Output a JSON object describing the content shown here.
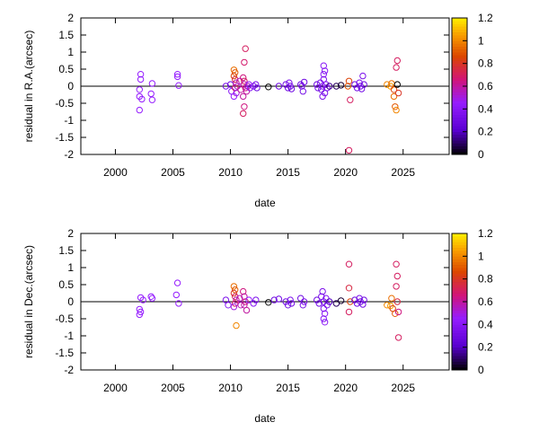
{
  "chart_data": [
    {
      "type": "scatter",
      "xlabel": "date",
      "ylabel": "residual in R.A.(arcsec)",
      "xlim": [
        1997,
        2029
      ],
      "ylim": [
        -2,
        2
      ],
      "xticks": [
        2000,
        2005,
        2010,
        2015,
        2020,
        2025
      ],
      "yticks": [
        -2,
        -1.5,
        -1,
        -0.5,
        0,
        0.5,
        1,
        1.5,
        2
      ],
      "ytick_labels": [
        "-2",
        "-1.5",
        "-1",
        "-0.5",
        "0",
        "0.5",
        "1",
        "1.5",
        "2"
      ],
      "colorbar": {
        "range": [
          0,
          1.2
        ],
        "ticks": [
          0,
          0.2,
          0.4,
          0.6,
          0.8,
          1,
          1.2
        ]
      },
      "reference_line_y": 0,
      "grid": false,
      "points": [
        {
          "x": 2002.2,
          "y": 0.35,
          "c": 0.45
        },
        {
          "x": 2002.2,
          "y": 0.2,
          "c": 0.45
        },
        {
          "x": 2002.1,
          "y": -0.1,
          "c": 0.45
        },
        {
          "x": 2002.1,
          "y": -0.3,
          "c": 0.45
        },
        {
          "x": 2002.3,
          "y": -0.38,
          "c": 0.45
        },
        {
          "x": 2002.1,
          "y": -0.7,
          "c": 0.45
        },
        {
          "x": 2003.2,
          "y": 0.08,
          "c": 0.45
        },
        {
          "x": 2003.1,
          "y": -0.22,
          "c": 0.45
        },
        {
          "x": 2003.2,
          "y": -0.4,
          "c": 0.45
        },
        {
          "x": 2005.4,
          "y": 0.35,
          "c": 0.45
        },
        {
          "x": 2005.4,
          "y": 0.28,
          "c": 0.45
        },
        {
          "x": 2005.5,
          "y": 0.02,
          "c": 0.45
        },
        {
          "x": 2009.6,
          "y": 0.0,
          "c": 0.35
        },
        {
          "x": 2010.0,
          "y": 0.05,
          "c": 0.3
        },
        {
          "x": 2010.1,
          "y": -0.15,
          "c": 0.4
        },
        {
          "x": 2010.3,
          "y": 0.48,
          "c": 0.95
        },
        {
          "x": 2010.4,
          "y": 0.4,
          "c": 0.9
        },
        {
          "x": 2010.3,
          "y": 0.3,
          "c": 0.85
        },
        {
          "x": 2010.4,
          "y": 0.2,
          "c": 0.75
        },
        {
          "x": 2010.5,
          "y": 0.1,
          "c": 0.6
        },
        {
          "x": 2010.4,
          "y": -0.05,
          "c": 0.7
        },
        {
          "x": 2010.5,
          "y": -0.2,
          "c": 0.5
        },
        {
          "x": 2010.3,
          "y": -0.3,
          "c": 0.45
        },
        {
          "x": 2010.6,
          "y": 0.0,
          "c": 0.55
        },
        {
          "x": 2010.8,
          "y": 0.15,
          "c": 0.55
        },
        {
          "x": 2010.9,
          "y": -0.1,
          "c": 0.6
        },
        {
          "x": 2011.1,
          "y": 0.25,
          "c": 0.65
        },
        {
          "x": 2011.2,
          "y": 0.05,
          "c": 0.6
        },
        {
          "x": 2011.3,
          "y": -0.05,
          "c": 0.65
        },
        {
          "x": 2011.2,
          "y": 0.15,
          "c": 0.7
        },
        {
          "x": 2011.4,
          "y": -0.15,
          "c": 0.6
        },
        {
          "x": 2011.1,
          "y": -0.3,
          "c": 0.6
        },
        {
          "x": 2011.3,
          "y": 1.1,
          "c": 0.7
        },
        {
          "x": 2011.2,
          "y": 0.7,
          "c": 0.68
        },
        {
          "x": 2011.2,
          "y": -0.6,
          "c": 0.65
        },
        {
          "x": 2011.1,
          "y": -0.8,
          "c": 0.7
        },
        {
          "x": 2011.5,
          "y": 0.0,
          "c": 0.55
        },
        {
          "x": 2011.6,
          "y": 0.05,
          "c": 0.45
        },
        {
          "x": 2011.7,
          "y": -0.05,
          "c": 0.4
        },
        {
          "x": 2012.0,
          "y": 0.0,
          "c": 0.4
        },
        {
          "x": 2012.2,
          "y": 0.05,
          "c": 0.35
        },
        {
          "x": 2012.3,
          "y": -0.05,
          "c": 0.3
        },
        {
          "x": 2013.3,
          "y": -0.02,
          "c": 0.0
        },
        {
          "x": 2014.2,
          "y": 0.0,
          "c": 0.3
        },
        {
          "x": 2014.8,
          "y": 0.05,
          "c": 0.32
        },
        {
          "x": 2015.0,
          "y": -0.05,
          "c": 0.3
        },
        {
          "x": 2015.1,
          "y": 0.1,
          "c": 0.35
        },
        {
          "x": 2015.2,
          "y": 0.0,
          "c": 0.32
        },
        {
          "x": 2015.3,
          "y": -0.08,
          "c": 0.3
        },
        {
          "x": 2016.1,
          "y": 0.05,
          "c": 0.3
        },
        {
          "x": 2016.3,
          "y": -0.15,
          "c": 0.32
        },
        {
          "x": 2016.2,
          "y": 0.0,
          "c": 0.35
        },
        {
          "x": 2016.4,
          "y": 0.12,
          "c": 0.3
        },
        {
          "x": 2017.5,
          "y": 0.05,
          "c": 0.3
        },
        {
          "x": 2017.6,
          "y": -0.05,
          "c": 0.32
        },
        {
          "x": 2017.8,
          "y": 0.1,
          "c": 0.35
        },
        {
          "x": 2017.9,
          "y": -0.1,
          "c": 0.3
        },
        {
          "x": 2018.0,
          "y": 0.0,
          "c": 0.35
        },
        {
          "x": 2018.1,
          "y": 0.2,
          "c": 0.35
        },
        {
          "x": 2018.1,
          "y": 0.35,
          "c": 0.38
        },
        {
          "x": 2018.2,
          "y": 0.45,
          "c": 0.4
        },
        {
          "x": 2018.1,
          "y": 0.6,
          "c": 0.4
        },
        {
          "x": 2018.2,
          "y": -0.2,
          "c": 0.35
        },
        {
          "x": 2018.0,
          "y": -0.3,
          "c": 0.35
        },
        {
          "x": 2018.3,
          "y": 0.05,
          "c": 0.38
        },
        {
          "x": 2018.4,
          "y": -0.05,
          "c": 0.35
        },
        {
          "x": 2018.6,
          "y": 0.0,
          "c": 0.15
        },
        {
          "x": 2019.2,
          "y": 0.0,
          "c": 0.1
        },
        {
          "x": 2019.6,
          "y": 0.03,
          "c": 0.05
        },
        {
          "x": 2020.2,
          "y": 0.0,
          "c": 0.9
        },
        {
          "x": 2020.3,
          "y": 0.15,
          "c": 0.85
        },
        {
          "x": 2020.4,
          "y": -0.4,
          "c": 0.7
        },
        {
          "x": 2020.3,
          "y": -1.88,
          "c": 0.7
        },
        {
          "x": 2020.8,
          "y": 0.05,
          "c": 0.3
        },
        {
          "x": 2021.0,
          "y": -0.05,
          "c": 0.32
        },
        {
          "x": 2021.2,
          "y": 0.1,
          "c": 0.35
        },
        {
          "x": 2021.3,
          "y": 0.0,
          "c": 0.3
        },
        {
          "x": 2021.4,
          "y": -0.08,
          "c": 0.32
        },
        {
          "x": 2021.5,
          "y": 0.3,
          "c": 0.35
        },
        {
          "x": 2021.6,
          "y": 0.05,
          "c": 0.3
        },
        {
          "x": 2023.6,
          "y": 0.05,
          "c": 1.0
        },
        {
          "x": 2023.9,
          "y": 0.0,
          "c": 1.05
        },
        {
          "x": 2024.0,
          "y": 0.08,
          "c": 0.95
        },
        {
          "x": 2024.2,
          "y": -0.3,
          "c": 0.95
        },
        {
          "x": 2024.3,
          "y": -0.6,
          "c": 0.9
        },
        {
          "x": 2024.4,
          "y": -0.7,
          "c": 1.0
        },
        {
          "x": 2024.2,
          "y": -0.1,
          "c": 0.85
        },
        {
          "x": 2024.4,
          "y": 0.55,
          "c": 0.7
        },
        {
          "x": 2024.5,
          "y": 0.75,
          "c": 0.7
        },
        {
          "x": 2024.5,
          "y": 0.05,
          "c": 0.0
        },
        {
          "x": 2024.6,
          "y": -0.2,
          "c": 0.8
        }
      ]
    },
    {
      "type": "scatter",
      "xlabel": "date",
      "ylabel": "residual in Dec.(arcsec)",
      "xlim": [
        1997,
        2029
      ],
      "ylim": [
        -2,
        2
      ],
      "xticks": [
        2000,
        2005,
        2010,
        2015,
        2020,
        2025
      ],
      "yticks": [
        -2,
        -1.5,
        -1,
        -0.5,
        0,
        0.5,
        1,
        1.5,
        2
      ],
      "ytick_labels": [
        "-2",
        "-1.5",
        "-1",
        "-0.5",
        "0",
        "0.5",
        "1",
        "1.5",
        "2"
      ],
      "colorbar": {
        "range": [
          0,
          1.2
        ],
        "ticks": [
          0,
          0.2,
          0.4,
          0.6,
          0.8,
          1,
          1.2
        ]
      },
      "reference_line_y": 0,
      "grid": false,
      "points": [
        {
          "x": 2002.2,
          "y": 0.12,
          "c": 0.45
        },
        {
          "x": 2002.4,
          "y": 0.05,
          "c": 0.45
        },
        {
          "x": 2002.1,
          "y": -0.22,
          "c": 0.45
        },
        {
          "x": 2002.2,
          "y": -0.3,
          "c": 0.45
        },
        {
          "x": 2002.1,
          "y": -0.38,
          "c": 0.45
        },
        {
          "x": 2003.1,
          "y": 0.15,
          "c": 0.45
        },
        {
          "x": 2003.2,
          "y": 0.1,
          "c": 0.45
        },
        {
          "x": 2005.4,
          "y": 0.55,
          "c": 0.45
        },
        {
          "x": 2005.3,
          "y": 0.2,
          "c": 0.45
        },
        {
          "x": 2005.5,
          "y": -0.05,
          "c": 0.45
        },
        {
          "x": 2009.6,
          "y": 0.05,
          "c": 0.35
        },
        {
          "x": 2009.8,
          "y": -0.1,
          "c": 0.4
        },
        {
          "x": 2010.3,
          "y": 0.45,
          "c": 0.95
        },
        {
          "x": 2010.4,
          "y": 0.35,
          "c": 0.9
        },
        {
          "x": 2010.3,
          "y": 0.25,
          "c": 0.8
        },
        {
          "x": 2010.4,
          "y": 0.15,
          "c": 0.7
        },
        {
          "x": 2010.5,
          "y": 0.05,
          "c": 0.6
        },
        {
          "x": 2010.4,
          "y": -0.05,
          "c": 0.7
        },
        {
          "x": 2010.3,
          "y": -0.15,
          "c": 0.5
        },
        {
          "x": 2010.5,
          "y": -0.7,
          "c": 1.0
        },
        {
          "x": 2010.8,
          "y": 0.1,
          "c": 0.55
        },
        {
          "x": 2010.9,
          "y": -0.1,
          "c": 0.55
        },
        {
          "x": 2011.1,
          "y": 0.3,
          "c": 0.65
        },
        {
          "x": 2011.2,
          "y": 0.15,
          "c": 0.6
        },
        {
          "x": 2011.3,
          "y": 0.0,
          "c": 0.65
        },
        {
          "x": 2011.2,
          "y": -0.1,
          "c": 0.6
        },
        {
          "x": 2011.4,
          "y": -0.25,
          "c": 0.6
        },
        {
          "x": 2011.6,
          "y": 0.05,
          "c": 0.45
        },
        {
          "x": 2012.0,
          "y": -0.05,
          "c": 0.4
        },
        {
          "x": 2012.2,
          "y": 0.05,
          "c": 0.35
        },
        {
          "x": 2013.3,
          "y": -0.02,
          "c": 0.0
        },
        {
          "x": 2013.8,
          "y": 0.05,
          "c": 0.3
        },
        {
          "x": 2014.2,
          "y": 0.08,
          "c": 0.32
        },
        {
          "x": 2014.8,
          "y": 0.0,
          "c": 0.32
        },
        {
          "x": 2015.0,
          "y": -0.1,
          "c": 0.3
        },
        {
          "x": 2015.2,
          "y": 0.05,
          "c": 0.35
        },
        {
          "x": 2015.3,
          "y": -0.05,
          "c": 0.32
        },
        {
          "x": 2016.1,
          "y": 0.1,
          "c": 0.3
        },
        {
          "x": 2016.3,
          "y": -0.1,
          "c": 0.32
        },
        {
          "x": 2016.4,
          "y": 0.0,
          "c": 0.35
        },
        {
          "x": 2017.5,
          "y": 0.05,
          "c": 0.3
        },
        {
          "x": 2017.7,
          "y": -0.05,
          "c": 0.32
        },
        {
          "x": 2017.9,
          "y": 0.15,
          "c": 0.35
        },
        {
          "x": 2018.0,
          "y": 0.3,
          "c": 0.35
        },
        {
          "x": 2018.1,
          "y": 0.0,
          "c": 0.35
        },
        {
          "x": 2018.1,
          "y": -0.2,
          "c": 0.38
        },
        {
          "x": 2018.2,
          "y": -0.35,
          "c": 0.4
        },
        {
          "x": 2018.1,
          "y": -0.5,
          "c": 0.4
        },
        {
          "x": 2018.2,
          "y": -0.6,
          "c": 0.4
        },
        {
          "x": 2018.3,
          "y": 0.1,
          "c": 0.38
        },
        {
          "x": 2018.4,
          "y": -0.1,
          "c": 0.35
        },
        {
          "x": 2018.6,
          "y": 0.0,
          "c": 0.2
        },
        {
          "x": 2019.2,
          "y": -0.05,
          "c": 0.1
        },
        {
          "x": 2019.6,
          "y": 0.03,
          "c": 0.05
        },
        {
          "x": 2020.3,
          "y": 1.1,
          "c": 0.7
        },
        {
          "x": 2020.3,
          "y": 0.4,
          "c": 0.75
        },
        {
          "x": 2020.4,
          "y": 0.0,
          "c": 0.85
        },
        {
          "x": 2020.3,
          "y": -0.3,
          "c": 0.7
        },
        {
          "x": 2020.8,
          "y": 0.05,
          "c": 0.3
        },
        {
          "x": 2021.0,
          "y": -0.05,
          "c": 0.32
        },
        {
          "x": 2021.2,
          "y": 0.1,
          "c": 0.35
        },
        {
          "x": 2021.3,
          "y": 0.0,
          "c": 0.3
        },
        {
          "x": 2021.5,
          "y": -0.08,
          "c": 0.32
        },
        {
          "x": 2021.6,
          "y": 0.05,
          "c": 0.3
        },
        {
          "x": 2023.6,
          "y": -0.1,
          "c": 1.0
        },
        {
          "x": 2023.9,
          "y": -0.12,
          "c": 1.05
        },
        {
          "x": 2024.0,
          "y": 0.1,
          "c": 0.95
        },
        {
          "x": 2024.1,
          "y": -0.2,
          "c": 0.85
        },
        {
          "x": 2024.3,
          "y": -0.35,
          "c": 0.9
        },
        {
          "x": 2024.4,
          "y": 1.1,
          "c": 0.7
        },
        {
          "x": 2024.5,
          "y": 0.75,
          "c": 0.7
        },
        {
          "x": 2024.4,
          "y": 0.45,
          "c": 0.7
        },
        {
          "x": 2024.5,
          "y": 0.0,
          "c": 0.75
        },
        {
          "x": 2024.6,
          "y": -1.05,
          "c": 0.7
        },
        {
          "x": 2024.6,
          "y": -0.3,
          "c": 0.65
        }
      ]
    }
  ]
}
